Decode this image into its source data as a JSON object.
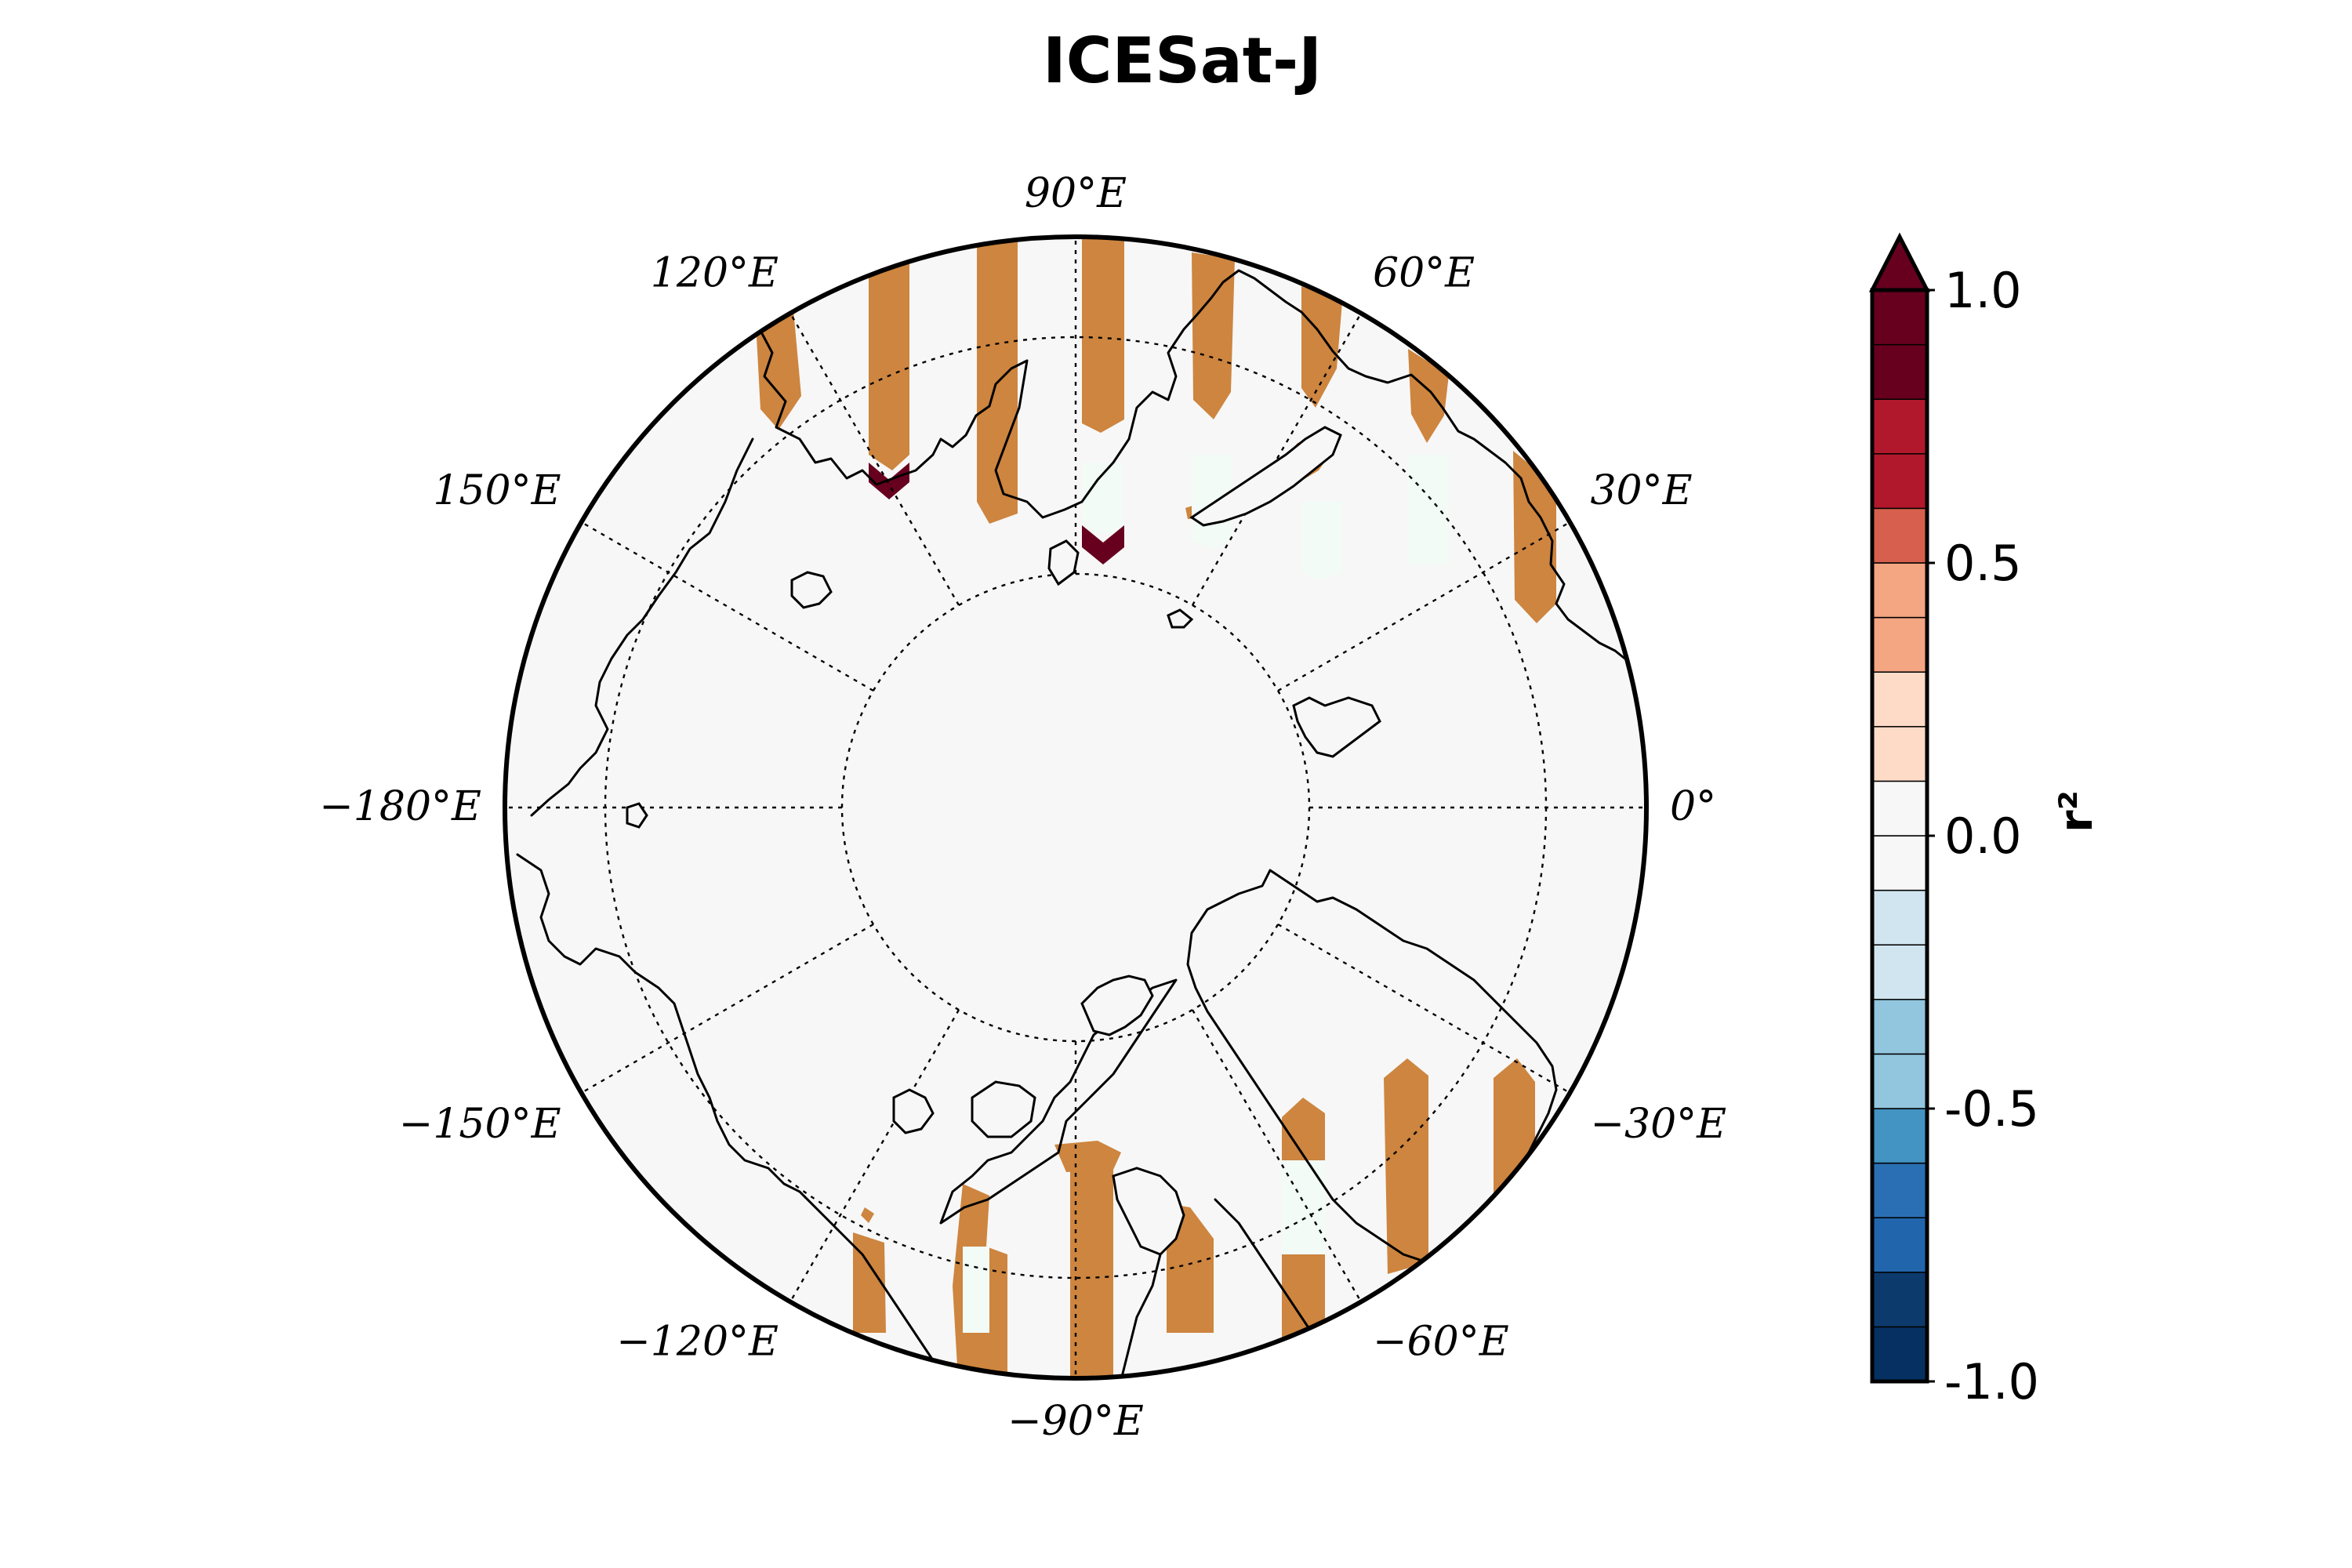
{
  "title": "ICESat-J",
  "map": {
    "projection": "north-polar-stereographic",
    "ocean_color": "#f7f7f7",
    "masked_color": "#cd853f",
    "longitude_labels": [
      {
        "lon": 90,
        "text": "90°E"
      },
      {
        "lon": 60,
        "text": "60°E"
      },
      {
        "lon": 30,
        "text": "30°E"
      },
      {
        "lon": 0,
        "text": "0°"
      },
      {
        "lon": -30,
        "text": "−30°E"
      },
      {
        "lon": -60,
        "text": "−60°E"
      },
      {
        "lon": -90,
        "text": "−90°E"
      },
      {
        "lon": -120,
        "text": "−120°E"
      },
      {
        "lon": -150,
        "text": "−150°E"
      },
      {
        "lon": -180,
        "text": "−180°E"
      },
      {
        "lon": 150,
        "text": "150°E"
      },
      {
        "lon": 120,
        "text": "120°E"
      }
    ],
    "latitude_circles": [
      80,
      70
    ]
  },
  "colorbar": {
    "label": "r²",
    "min": -1.0,
    "max": 1.0,
    "extend": "max",
    "extend_color": "#67001f",
    "ticks": [
      {
        "value": 1.0,
        "text": "1.0"
      },
      {
        "value": 0.5,
        "text": "0.5"
      },
      {
        "value": 0.0,
        "text": "0.0"
      },
      {
        "value": -0.5,
        "text": "-0.5"
      },
      {
        "value": -1.0,
        "text": "-1.0"
      }
    ],
    "levels": [
      {
        "from": -1.0,
        "to": -0.9,
        "color": "#053061"
      },
      {
        "from": -0.9,
        "to": -0.8,
        "color": "#0d3a6c"
      },
      {
        "from": -0.8,
        "to": -0.7,
        "color": "#2166ac"
      },
      {
        "from": -0.7,
        "to": -0.6,
        "color": "#2a6fb3"
      },
      {
        "from": -0.6,
        "to": -0.5,
        "color": "#4393c3"
      },
      {
        "from": -0.5,
        "to": -0.4,
        "color": "#92c5de"
      },
      {
        "from": -0.4,
        "to": -0.3,
        "color": "#92c5de"
      },
      {
        "from": -0.3,
        "to": -0.2,
        "color": "#d1e5f0"
      },
      {
        "from": -0.2,
        "to": -0.1,
        "color": "#d1e5f0"
      },
      {
        "from": -0.1,
        "to": 0.0,
        "color": "#f7f7f7"
      },
      {
        "from": 0.0,
        "to": 0.1,
        "color": "#f7f7f7"
      },
      {
        "from": 0.1,
        "to": 0.2,
        "color": "#fddbc7"
      },
      {
        "from": 0.2,
        "to": 0.3,
        "color": "#fddbc7"
      },
      {
        "from": 0.3,
        "to": 0.4,
        "color": "#f4a582"
      },
      {
        "from": 0.4,
        "to": 0.5,
        "color": "#f4a582"
      },
      {
        "from": 0.5,
        "to": 0.6,
        "color": "#d6604d"
      },
      {
        "from": 0.6,
        "to": 0.7,
        "color": "#b2182b"
      },
      {
        "from": 0.7,
        "to": 0.8,
        "color": "#b2182b"
      },
      {
        "from": 0.8,
        "to": 0.9,
        "color": "#67001f"
      },
      {
        "from": 0.9,
        "to": 1.0,
        "color": "#67001f"
      }
    ]
  }
}
